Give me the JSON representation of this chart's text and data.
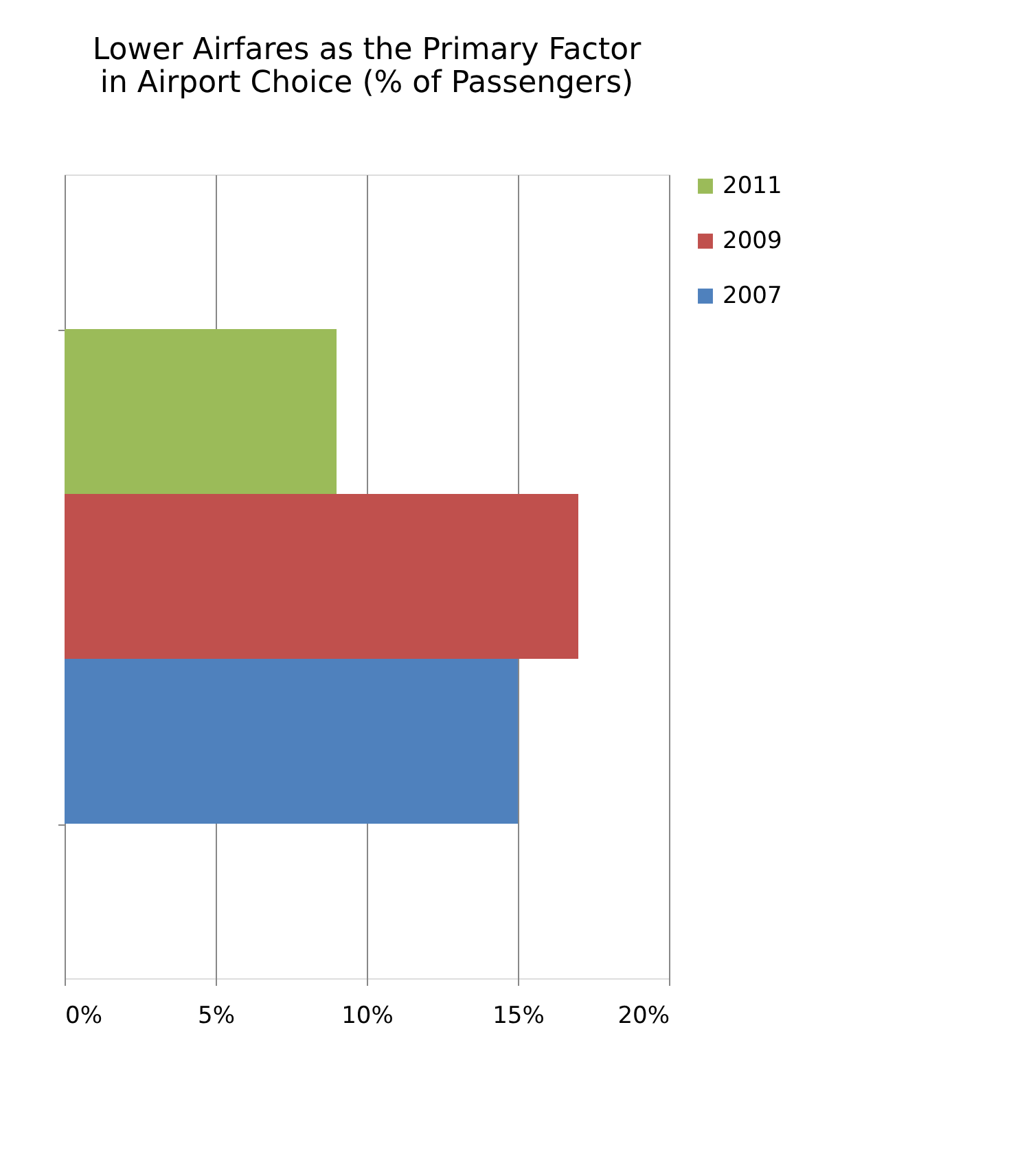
{
  "chart_data": {
    "type": "bar",
    "orientation": "horizontal",
    "title": "Lower Airfares as the Primary Factor in Airport Choice (% of Passengers)",
    "categories": [
      null
    ],
    "series": [
      {
        "name": "2011",
        "color": "#9bbb59",
        "values": [
          9
        ]
      },
      {
        "name": "2009",
        "color": "#c0504d",
        "values": [
          17
        ]
      },
      {
        "name": "2007",
        "color": "#4f81bd",
        "values": [
          15
        ]
      }
    ],
    "xlim": [
      0,
      20
    ],
    "xticks": [
      {
        "value": 0,
        "label": "0%"
      },
      {
        "value": 5,
        "label": "5%"
      },
      {
        "value": 10,
        "label": "10%"
      },
      {
        "value": 15,
        "label": "15%"
      },
      {
        "value": 20,
        "label": "20%"
      }
    ],
    "grid": "x",
    "legend": "right"
  }
}
